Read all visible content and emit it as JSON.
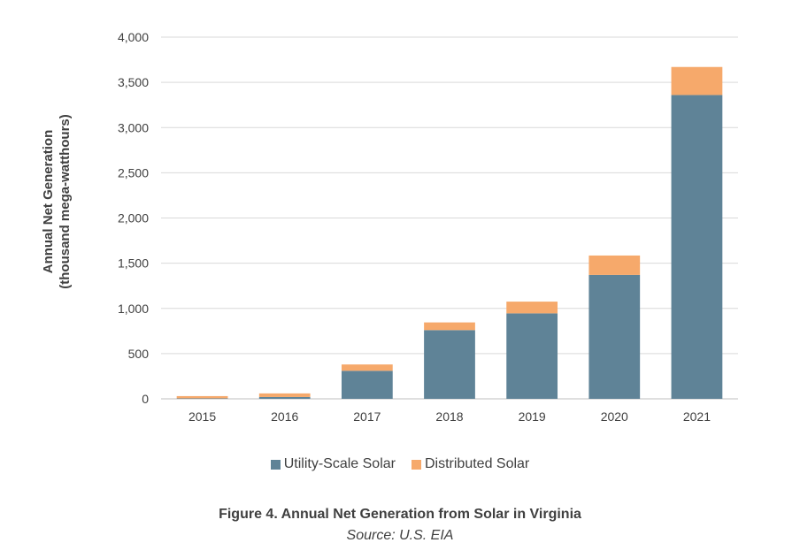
{
  "chart_data": {
    "type": "bar",
    "stacked": true,
    "categories": [
      "2015",
      "2016",
      "2017",
      "2018",
      "2019",
      "2020",
      "2021"
    ],
    "series": [
      {
        "name": "Utility-Scale Solar",
        "color": "#5f8397",
        "values": [
          5,
          20,
          310,
          760,
          945,
          1370,
          3360
        ]
      },
      {
        "name": "Distributed Solar",
        "color": "#f6a96b",
        "values": [
          25,
          40,
          70,
          85,
          130,
          215,
          310
        ]
      }
    ],
    "ylabel_line1": "Annual Net Generation",
    "ylabel_line2": "(thousand mega-watthours)",
    "ylim": [
      0,
      4000
    ],
    "yticks": [
      0,
      500,
      1000,
      1500,
      2000,
      2500,
      3000,
      3500,
      4000
    ],
    "ytick_labels": [
      "0",
      "500",
      "1,000",
      "1,500",
      "2,000",
      "2,500",
      "3,000",
      "3,500",
      "4,000"
    ],
    "grid": true,
    "legend_position": "bottom"
  },
  "caption": {
    "title": "Figure 4. Annual Net Generation from Solar in Virginia",
    "source": "Source: U.S. EIA"
  }
}
